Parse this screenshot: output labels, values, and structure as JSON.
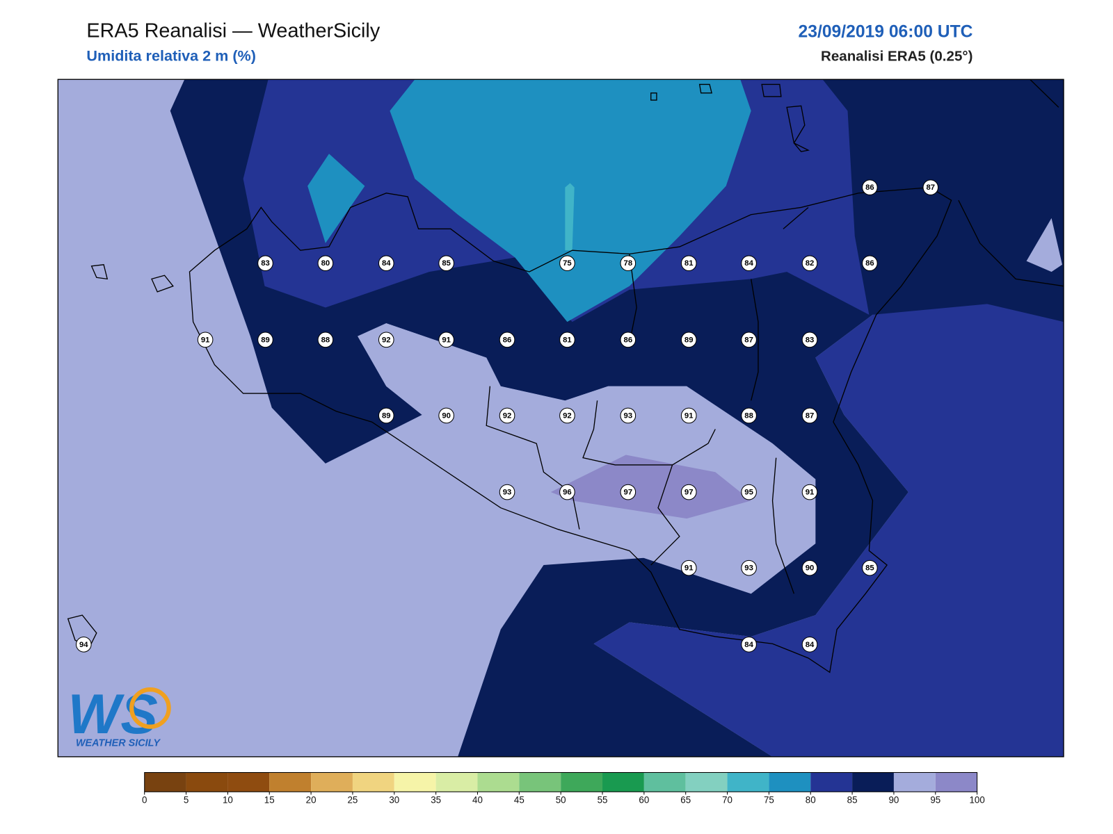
{
  "header": {
    "title": "ERA5 Reanalisi — WeatherSicily",
    "subtitle": "Umidita relativa 2 m (%)",
    "datetime": "23/09/2019 06:00 UTC",
    "source": "Reanalisi ERA5 (0.25°)"
  },
  "stations": [
    86,
    87,
    83,
    80,
    84,
    85,
    75,
    78,
    81,
    84,
    82,
    86,
    91,
    89,
    88,
    92,
    91,
    86,
    81,
    86,
    89,
    87,
    83,
    89,
    90,
    92,
    92,
    93,
    91,
    88,
    87,
    93,
    96,
    97,
    97,
    95,
    91,
    91,
    93,
    90,
    85,
    94,
    84,
    84
  ],
  "colorbar": {
    "ticks": [
      0,
      5,
      10,
      15,
      20,
      25,
      30,
      35,
      40,
      45,
      50,
      55,
      60,
      65,
      70,
      75,
      80,
      85,
      90,
      95,
      100
    ],
    "colors": [
      "#784210",
      "#8a4a0e",
      "#8f4c10",
      "#c0802e",
      "#dfae5a",
      "#f0d480",
      "#f6f4a8",
      "#d9eda5",
      "#acdc90",
      "#78c47a",
      "#3ea85a",
      "#199a50",
      "#5fbf9e",
      "#83d0c0",
      "#40b4c8",
      "#1e90c0",
      "#243494",
      "#091d58",
      "#a4acdc",
      "#8c88c8"
    ]
  },
  "logo": {
    "mark": "WS",
    "text": "WEATHER SICILY"
  }
}
